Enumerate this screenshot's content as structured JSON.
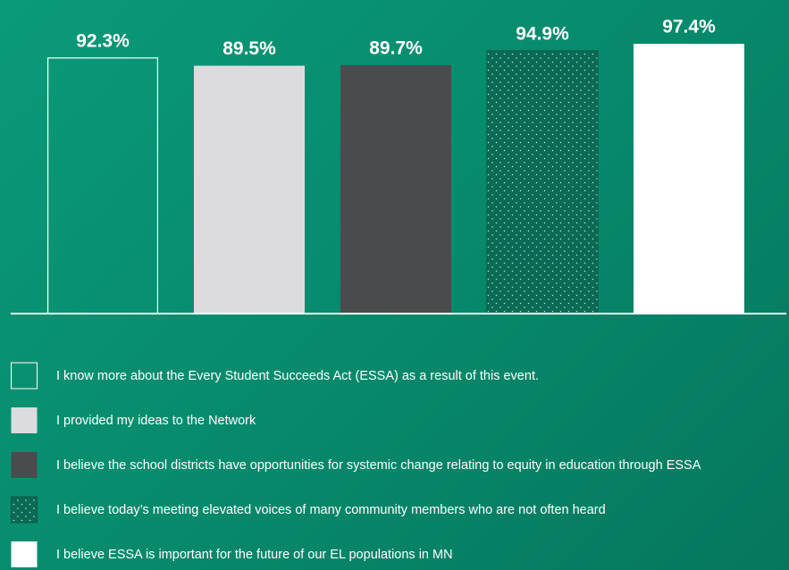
{
  "chart_data": {
    "type": "bar",
    "series": [
      {
        "name": "I know more about the Every Student Succeeds Act (ESSA) as a result of this event.",
        "color": "#ffffff",
        "fill_style": "outline",
        "values": [
          92.3
        ],
        "value_labels": [
          "92.3%"
        ]
      },
      {
        "name": "I provided my ideas to the Network",
        "color": "#dcdcde",
        "fill_style": "solid",
        "values": [
          89.5
        ],
        "value_labels": [
          "89.5%"
        ]
      },
      {
        "name": "I believe the school districts have opportunities for systemic change relating to equity in education through ESSA",
        "color": "#4a4b4d",
        "fill_style": "solid",
        "values": [
          89.7
        ],
        "value_labels": [
          "89.7%"
        ]
      },
      {
        "name": "I believe today’s meeting elevated voices of many community members who are not often heard",
        "color": "#0b6a55",
        "fill_style": "dotted",
        "values": [
          94.9
        ],
        "value_labels": [
          "94.9%"
        ]
      },
      {
        "name": "I believe ESSA is important for the future of our EL populations in MN",
        "color": "#ffffff",
        "fill_style": "solid",
        "values": [
          97.4
        ],
        "value_labels": [
          "97.4%"
        ]
      }
    ],
    "ylim": [
      0,
      100
    ]
  }
}
